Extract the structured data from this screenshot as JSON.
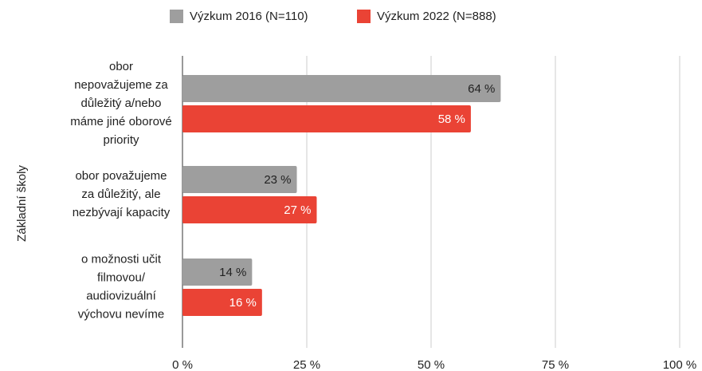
{
  "chart_data": {
    "type": "bar",
    "orientation": "horizontal",
    "y_label": "Základní školy",
    "categories": [
      "obor\nnepovažujeme za\ndůležitý a/nebo\nmáme jiné oborové\npriority",
      "obor považujeme\nza důležitý, ale\nnezbývají kapacity",
      "o možnosti učit\nfilmovou/\naudiovizuální\nvýchovu nevíme"
    ],
    "series": [
      {
        "name": "Výzkum 2016 (N=110)",
        "color": "#9e9e9e",
        "values": [
          64,
          23,
          14
        ],
        "value_labels": [
          "64 %",
          "23 %",
          "14 %"
        ]
      },
      {
        "name": "Výzkum 2022 (N=888)",
        "color": "#ea4335",
        "values": [
          58,
          27,
          16
        ],
        "value_labels": [
          "58 %",
          "27 %",
          "16 %"
        ]
      }
    ],
    "xlim": [
      0,
      100
    ],
    "xticks": [
      {
        "value": 0,
        "label": "0 %"
      },
      {
        "value": 25,
        "label": "25 %"
      },
      {
        "value": 50,
        "label": "50 %"
      },
      {
        "value": 75,
        "label": "75 %"
      },
      {
        "value": 100,
        "label": "100 %"
      }
    ],
    "grid": true,
    "legend": "top"
  }
}
